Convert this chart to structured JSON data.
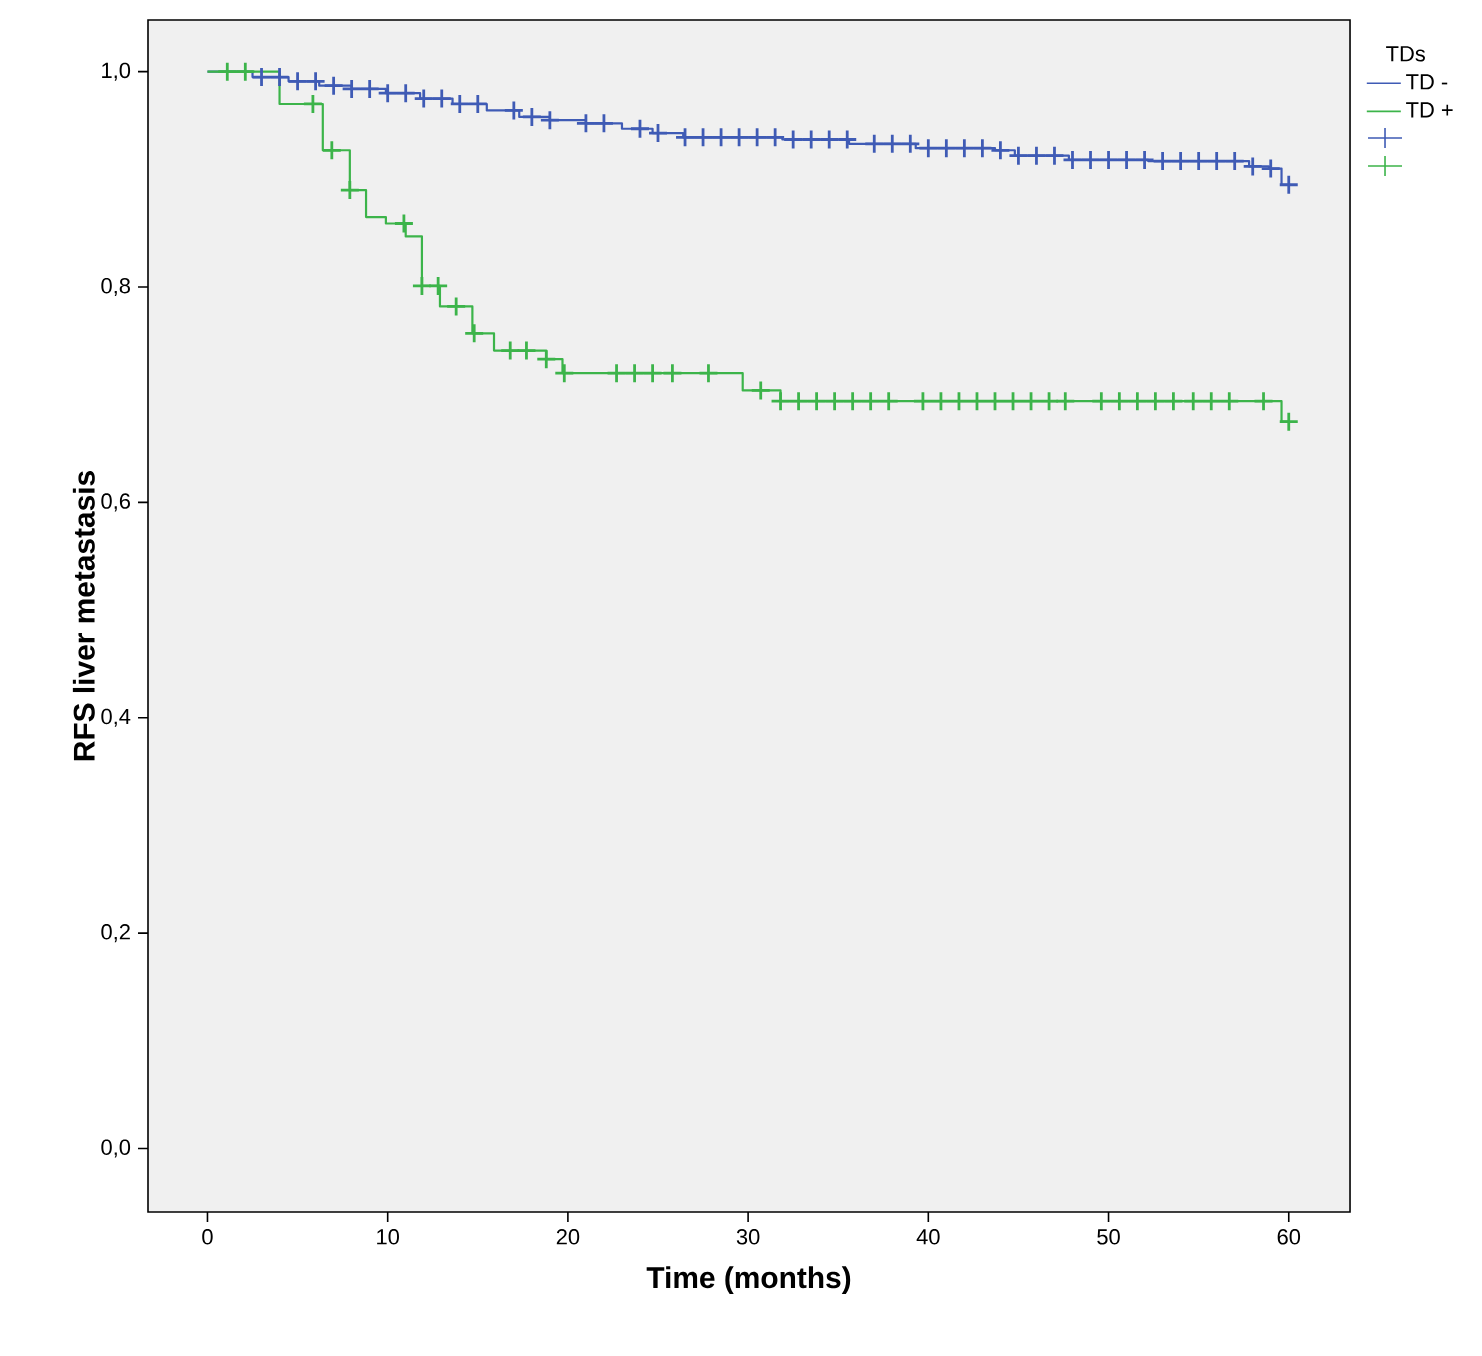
{
  "chart_data": {
    "type": "step",
    "xlabel": "Time (months)",
    "ylabel": "RFS liver metastasis",
    "legend_title": "TDs",
    "legend": "right",
    "grid": false,
    "line_style": "solid",
    "xlim": [
      -3.3,
      63.4
    ],
    "xticks": [
      0,
      10,
      20,
      30,
      40,
      50,
      60
    ],
    "ylim": [
      -0.059,
      1.048
    ],
    "yticks": [
      {
        "value": 0,
        "label": "0,0"
      },
      {
        "value": 0.2,
        "label": "0,2"
      },
      {
        "value": 0.4,
        "label": "0,4"
      },
      {
        "value": 0.6,
        "label": "0,6"
      },
      {
        "value": 0.8,
        "label": "0,8"
      },
      {
        "value": 1,
        "label": "1,0"
      }
    ],
    "series": [
      {
        "name": "TD -",
        "color": "#3f5bb5",
        "x": [
          0,
          2.5,
          4.5,
          6.2,
          8,
          9.9,
          11.8,
          13.6,
          15.5,
          17.3,
          19,
          21,
          23,
          24.7,
          26.4,
          31.9,
          35.6,
          39.3,
          43.7,
          44.8,
          47.8,
          52.2,
          57.8,
          58.9,
          59.6,
          60
        ],
        "values": [
          1.0,
          0.995,
          0.991,
          0.987,
          0.984,
          0.98,
          0.975,
          0.97,
          0.964,
          0.958,
          0.955,
          0.952,
          0.947,
          0.943,
          0.939,
          0.937,
          0.933,
          0.929,
          0.927,
          0.922,
          0.918,
          0.917,
          0.912,
          0.91,
          0.895,
          0.895
        ]
      },
      {
        "name": "TD +",
        "color": "#3cb44a",
        "x": [
          0,
          4.0,
          6.4,
          7.9,
          8.8,
          9.9,
          11.0,
          11.9,
          12.9,
          14.7,
          15.9,
          18.8,
          19.7,
          29.7,
          31.8,
          59.6,
          60
        ],
        "values": [
          1.0,
          0.97,
          0.927,
          0.89,
          0.865,
          0.859,
          0.847,
          0.801,
          0.782,
          0.757,
          0.741,
          0.733,
          0.72,
          0.704,
          0.694,
          0.675,
          0.675
        ]
      },
      {
        "type": "scatter",
        "marker": "cross",
        "color": "#3f5bb5",
        "x": [
          3,
          4,
          5,
          6,
          7,
          8,
          9,
          10,
          11,
          12,
          13,
          14,
          15,
          17,
          18,
          19,
          21,
          22,
          24,
          25,
          26.5,
          27.5,
          28.5,
          29.5,
          30.5,
          31.5,
          32.5,
          33.5,
          34.5,
          35.5,
          37,
          38,
          39,
          40,
          41,
          42,
          43,
          44,
          45,
          46,
          47,
          48,
          49,
          50,
          51,
          52,
          53,
          54,
          55,
          56,
          57,
          58,
          59,
          60
        ],
        "values": [
          0.995,
          0.995,
          0.991,
          0.991,
          0.987,
          0.984,
          0.984,
          0.98,
          0.98,
          0.975,
          0.975,
          0.97,
          0.97,
          0.964,
          0.958,
          0.955,
          0.952,
          0.952,
          0.947,
          0.943,
          0.939,
          0.939,
          0.939,
          0.939,
          0.939,
          0.939,
          0.937,
          0.937,
          0.937,
          0.937,
          0.933,
          0.933,
          0.933,
          0.929,
          0.929,
          0.929,
          0.929,
          0.927,
          0.922,
          0.922,
          0.922,
          0.918,
          0.918,
          0.918,
          0.918,
          0.918,
          0.917,
          0.917,
          0.917,
          0.917,
          0.917,
          0.912,
          0.91,
          0.895
        ]
      },
      {
        "type": "scatter",
        "marker": "cross",
        "color": "#3cb44a",
        "x": [
          1.1,
          2.1,
          5.85,
          6.9,
          7.9,
          10.9,
          11.9,
          12.8,
          13.8,
          14.8,
          16.8,
          17.7,
          18.8,
          19.8,
          22.7,
          23.7,
          24.7,
          25.8,
          27.8,
          30.7,
          31.8,
          32.8,
          33.8,
          34.8,
          35.8,
          36.8,
          37.8,
          39.7,
          40.7,
          41.7,
          42.7,
          43.7,
          44.7,
          45.7,
          46.7,
          47.6,
          49.6,
          50.6,
          51.6,
          52.6,
          53.6,
          54.7,
          55.7,
          56.7,
          58.6,
          60
        ],
        "values": [
          1.0,
          1.0,
          0.97,
          0.927,
          0.89,
          0.859,
          0.801,
          0.801,
          0.782,
          0.757,
          0.741,
          0.741,
          0.733,
          0.72,
          0.72,
          0.72,
          0.72,
          0.72,
          0.72,
          0.704,
          0.694,
          0.694,
          0.694,
          0.694,
          0.694,
          0.694,
          0.694,
          0.694,
          0.694,
          0.694,
          0.694,
          0.694,
          0.694,
          0.694,
          0.694,
          0.694,
          0.694,
          0.694,
          0.694,
          0.694,
          0.694,
          0.694,
          0.694,
          0.694,
          0.694,
          0.675
        ]
      }
    ]
  }
}
